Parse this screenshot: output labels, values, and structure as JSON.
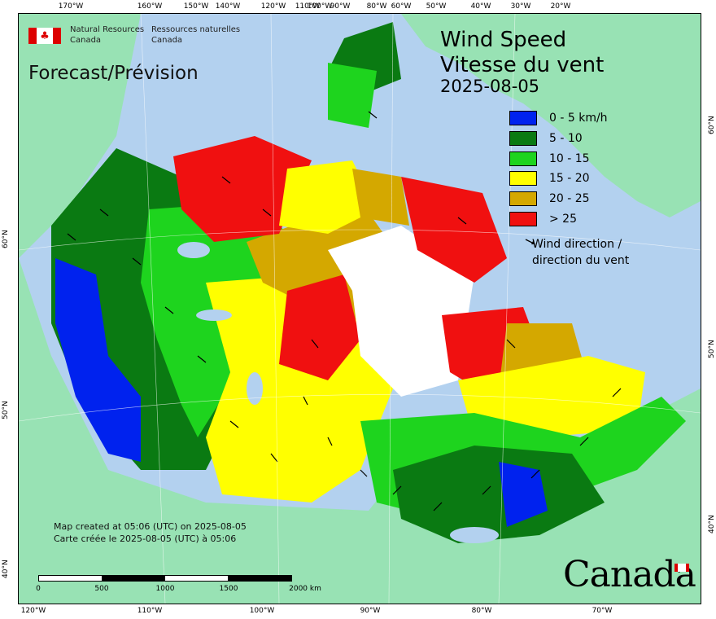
{
  "map": {
    "title": "Wind Speed",
    "title_fr": "Vitesse du vent",
    "date": "2025-08-05",
    "forecast_label": "Forecast/Prévision",
    "agency_en": [
      "Natural Resources",
      "Canada"
    ],
    "agency_fr": [
      "Ressources naturelles",
      "Canada"
    ],
    "created_en": "Map created at 05:06 (UTC) on 2025-08-05",
    "created_fr": "Carte créée le 2025-08-05 (UTC) à 05:06",
    "wordmark": "Canada",
    "legend": [
      {
        "label": "0 - 5 km/h",
        "color": "#0022ee"
      },
      {
        "label": "5 - 10",
        "color": "#0a7a12"
      },
      {
        "label": "10 - 15",
        "color": "#1ed41e"
      },
      {
        "label": "15 - 20",
        "color": "#ffff00"
      },
      {
        "label": "20 - 25",
        "color": "#d4a800"
      },
      {
        "label": "> 25",
        "color": "#f01010"
      }
    ],
    "wind_direction_label": [
      "Wind direction /",
      "direction du vent"
    ],
    "scale_labels": [
      "0",
      "500",
      "1000",
      "1500",
      "2000  km"
    ],
    "lon_ticks_top": [
      "170°W",
      "160°W",
      "150°W",
      "140°W",
      "120°W",
      "110°W",
      "100°W",
      "90°W",
      "80°W",
      "60°W",
      "50°W",
      "40°W",
      "30°W",
      "20°W"
    ],
    "lon_ticks_bottom": [
      "120°W",
      "110°W",
      "100°W",
      "90°W",
      "80°W",
      "70°W"
    ],
    "lat_ticks_left": [
      "60°N",
      "50°N",
      "40°N"
    ],
    "lat_ticks_right": [
      "60°N",
      "50°N",
      "40°N"
    ],
    "colors": {
      "water": "#b3d1ef",
      "land": "#98e2b4"
    }
  }
}
